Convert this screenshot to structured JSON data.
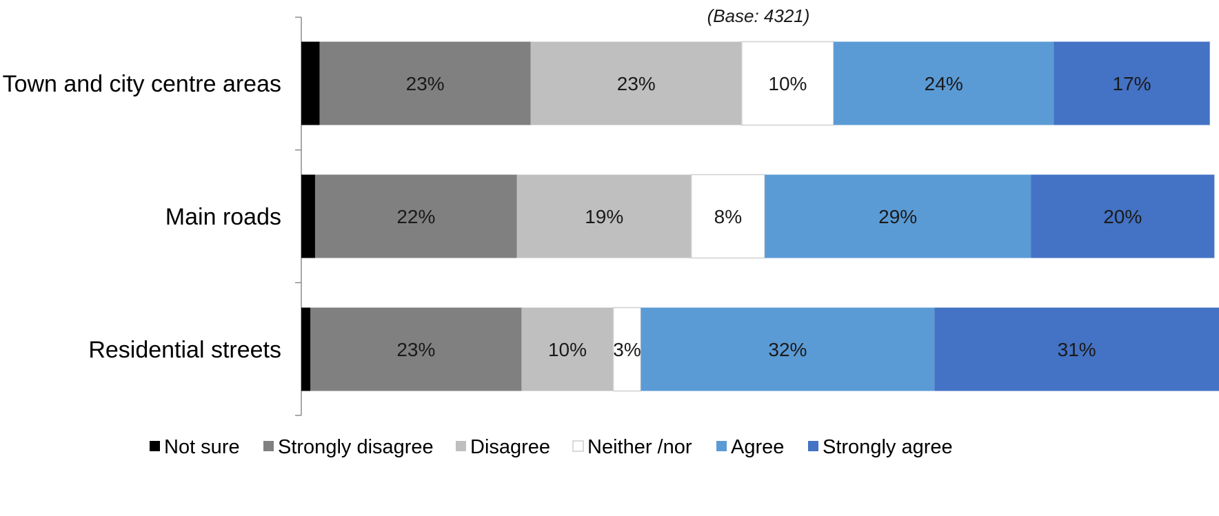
{
  "chart_data": {
    "type": "stacked-bar-horizontal",
    "note": "(Base: 4321)",
    "categories": [
      "Town and city centre areas",
      "Main roads",
      "Residential streets"
    ],
    "xlim": [
      0,
      100
    ],
    "series": [
      {
        "name": "Not sure",
        "color": "#000000",
        "values": [
          2,
          1.5,
          1
        ],
        "labels": [
          "",
          "",
          ""
        ]
      },
      {
        "name": "Strongly disagree",
        "color": "#808080",
        "values": [
          23,
          22,
          23
        ],
        "labels": [
          "23%",
          "22%",
          "23%"
        ]
      },
      {
        "name": "Disagree",
        "color": "#bfbfbf",
        "values": [
          23,
          19,
          10
        ],
        "labels": [
          "23%",
          "19%",
          "10%"
        ]
      },
      {
        "name": "Neither /nor",
        "color": "#ffffff",
        "values": [
          10,
          8,
          3
        ],
        "labels": [
          "10%",
          "8%",
          "3%"
        ]
      },
      {
        "name": "Agree",
        "color": "#5b9bd5",
        "values": [
          24,
          29,
          32
        ],
        "labels": [
          "24%",
          "29%",
          "32%"
        ]
      },
      {
        "name": "Strongly agree",
        "color": "#4472c4",
        "values": [
          17,
          20,
          31
        ],
        "labels": [
          "17%",
          "20%",
          "31%"
        ]
      }
    ],
    "legend_position": "bottom",
    "grid": false
  }
}
